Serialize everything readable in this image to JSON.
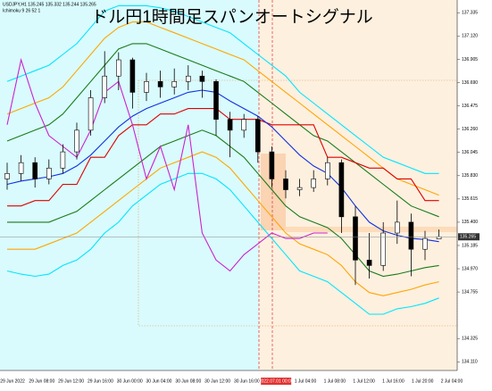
{
  "chart_data": {
    "type": "candlestick",
    "title": "ドル円1時間足スパンオートシグナル",
    "symbol_text": "USDJPY,H1  135.245 135.332 135.244 135.265",
    "indicator_text": "Ichimoku 9 26 52 1",
    "xtick_labels": [
      "29 Jun 2022",
      "29 Jun 08:00",
      "29 Jun 12:00",
      "29 Jun 16:00",
      "30 Jun 00:00",
      "30 Jun 04:00",
      "30 Jun 08:00",
      "30 Jun 12:00",
      "30 Jun 16:00",
      "2022.07.01 00:00",
      "1 Jul 04:00",
      "1 Jul 08:00",
      "1 Jul 12:00",
      "1 Jul 16:00",
      "1 Jul 20:00",
      "2 Jul 04:00"
    ],
    "ylim": [
      134.03,
      137.42
    ],
    "yticks": [
      137.335,
      {
        "value": 137.12,
        "label": "137.120"
      },
      136.905,
      {
        "value": 136.69,
        "label": "136.690"
      },
      136.475,
      {
        "value": 136.26,
        "label": "136.260"
      },
      136.045,
      {
        "value": 135.83,
        "label": "135.830"
      },
      135.615,
      {
        "value": 135.4,
        "label": "135.400"
      },
      135.185,
      {
        "value": 134.97,
        "label": "134.970"
      },
      134.755,
      134.325,
      {
        "value": 134.11,
        "label": "134.110"
      }
    ],
    "candles": {
      "open": [
        135.8,
        135.85,
        135.95,
        135.8,
        135.9,
        136.05,
        136.25,
        136.55,
        136.75,
        136.9,
        136.6,
        136.7,
        136.65,
        136.7,
        136.75,
        136.7,
        136.35,
        136.25,
        136.35,
        136.05,
        135.8,
        135.7,
        135.72,
        135.8,
        135.95,
        135.45,
        135.05,
        135.0,
        135.3,
        135.4,
        135.15,
        135.245
      ],
      "high": [
        135.95,
        136.02,
        136.0,
        135.98,
        136.12,
        136.32,
        136.62,
        136.98,
        136.97,
        136.92,
        136.78,
        136.8,
        136.82,
        136.85,
        136.8,
        136.72,
        136.42,
        136.4,
        136.38,
        136.1,
        135.88,
        135.8,
        135.88,
        136.0,
        135.98,
        135.55,
        135.3,
        135.4,
        135.6,
        135.48,
        135.32,
        135.332
      ],
      "low": [
        135.7,
        135.78,
        135.72,
        135.75,
        135.85,
        135.98,
        136.2,
        136.5,
        136.62,
        136.45,
        136.52,
        136.55,
        136.58,
        136.62,
        136.55,
        136.2,
        136.0,
        136.18,
        135.95,
        135.72,
        135.62,
        135.64,
        135.68,
        135.74,
        135.3,
        134.82,
        134.88,
        134.95,
        135.2,
        134.9,
        135.05,
        135.244
      ],
      "close": [
        135.85,
        135.95,
        135.8,
        135.9,
        136.05,
        136.25,
        136.55,
        136.75,
        136.9,
        136.6,
        136.7,
        136.65,
        136.7,
        136.75,
        136.7,
        136.35,
        136.25,
        136.35,
        136.05,
        135.8,
        135.7,
        135.72,
        135.8,
        135.95,
        135.45,
        135.05,
        135.0,
        135.3,
        135.4,
        135.15,
        135.25,
        135.265
      ]
    },
    "series": [
      {
        "color": "#00e5ff",
        "values": [
          136.7,
          136.75,
          136.8,
          136.85,
          136.95,
          137.05,
          137.2,
          137.35,
          137.4,
          137.4,
          137.4,
          137.38,
          137.35,
          137.3,
          137.25,
          137.2,
          137.15,
          137.05,
          136.95,
          136.85,
          136.75,
          136.6,
          136.5,
          136.4,
          136.3,
          136.2,
          136.1,
          136.0,
          135.95,
          135.9,
          135.85,
          135.85
        ]
      },
      {
        "color": "#00e5ff",
        "values": [
          134.95,
          134.92,
          134.9,
          134.92,
          135.0,
          135.05,
          135.15,
          135.3,
          135.4,
          135.55,
          135.65,
          135.75,
          135.8,
          135.85,
          135.85,
          135.8,
          135.7,
          135.55,
          135.4,
          135.25,
          135.1,
          134.95,
          134.9,
          134.85,
          134.75,
          134.65,
          134.55,
          134.55,
          134.6,
          134.62,
          134.65,
          134.7
        ]
      },
      {
        "color": "#ffa500",
        "values": [
          136.4,
          136.45,
          136.5,
          136.55,
          136.65,
          136.8,
          136.95,
          137.1,
          137.2,
          137.25,
          137.25,
          137.2,
          137.15,
          137.1,
          137.05,
          137.0,
          136.95,
          136.9,
          136.8,
          136.7,
          136.6,
          136.5,
          136.4,
          136.3,
          136.2,
          136.1,
          136.0,
          135.9,
          135.8,
          135.75,
          135.7,
          135.65
        ]
      },
      {
        "color": "#ffa500",
        "values": [
          135.15,
          135.15,
          135.15,
          135.2,
          135.25,
          135.3,
          135.4,
          135.5,
          135.6,
          135.7,
          135.8,
          135.9,
          135.95,
          136.0,
          136.05,
          136.0,
          135.9,
          135.75,
          135.6,
          135.45,
          135.3,
          135.2,
          135.15,
          135.1,
          135.0,
          134.85,
          134.75,
          134.72,
          134.75,
          134.78,
          134.82,
          134.85
        ]
      },
      {
        "color": "#1a7a1a",
        "values": [
          136.15,
          136.2,
          136.25,
          136.3,
          136.4,
          136.55,
          136.7,
          136.85,
          137.0,
          137.05,
          137.05,
          137.0,
          136.95,
          136.9,
          136.85,
          136.8,
          136.75,
          136.7,
          136.6,
          136.5,
          136.4,
          136.3,
          136.2,
          136.15,
          136.05,
          135.95,
          135.85,
          135.75,
          135.65,
          135.55,
          135.5,
          135.45
        ]
      },
      {
        "color": "#1a7a1a",
        "values": [
          135.4,
          135.4,
          135.4,
          135.4,
          135.45,
          135.5,
          135.6,
          135.7,
          135.8,
          135.9,
          136.0,
          136.1,
          136.15,
          136.2,
          136.25,
          136.2,
          136.1,
          136.0,
          135.85,
          135.7,
          135.55,
          135.45,
          135.4,
          135.35,
          135.25,
          135.1,
          134.95,
          134.9,
          134.92,
          134.95,
          134.98,
          135.0
        ]
      },
      {
        "color": "#e00000",
        "values": [
          135.55,
          135.55,
          135.6,
          135.6,
          135.75,
          135.75,
          136.0,
          136.0,
          136.2,
          136.3,
          136.3,
          136.4,
          136.4,
          136.45,
          136.45,
          136.45,
          136.35,
          136.35,
          136.35,
          136.3,
          136.3,
          136.3,
          136.3,
          136.0,
          136.0,
          135.95,
          135.9,
          135.9,
          135.8,
          135.8,
          135.6,
          135.6
        ]
      },
      {
        "color": "#1030e0",
        "values": [
          135.75,
          135.78,
          135.8,
          135.82,
          135.85,
          135.92,
          136.02,
          136.15,
          136.28,
          136.38,
          136.45,
          136.5,
          136.55,
          136.6,
          136.62,
          136.6,
          136.52,
          136.45,
          136.38,
          136.28,
          136.15,
          136.02,
          135.92,
          135.85,
          135.72,
          135.55,
          135.4,
          135.32,
          135.28,
          135.25,
          135.24,
          135.22
        ]
      },
      {
        "color": "#cc22cc",
        "values": [
          136.3,
          136.9,
          136.5,
          136.2,
          136.1,
          136.0,
          136.25,
          136.6,
          136.7,
          136.3,
          135.8,
          136.1,
          135.7,
          136.3,
          135.3,
          135.05,
          134.95,
          135.1,
          135.2,
          135.3,
          135.25,
          135.25,
          135.3,
          135.3,
          null,
          null,
          null,
          null,
          null,
          null,
          null,
          null
        ]
      }
    ]
  }
}
